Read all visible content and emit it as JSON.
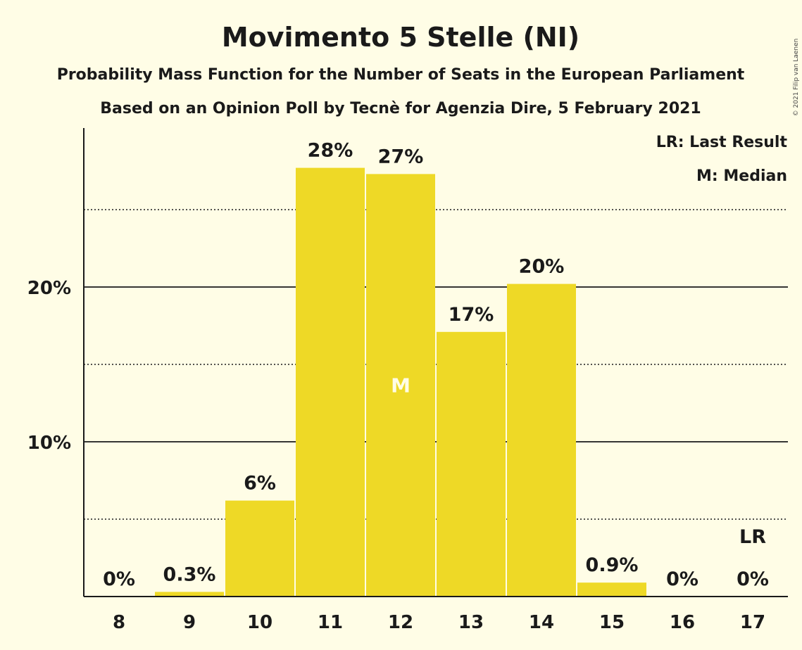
{
  "chart_data": {
    "type": "bar",
    "title": "Movimento 5 Stelle (NI)",
    "subtitle": "Probability Mass Function for the Number of Seats in the European Parliament",
    "subtitle2": "Based on an Opinion Poll by Tecnè for Agenzia Dire, 5 February 2021",
    "copyright": "© 2021 Filip van Laenen",
    "categories": [
      "8",
      "9",
      "10",
      "11",
      "12",
      "13",
      "14",
      "15",
      "16",
      "17"
    ],
    "values": [
      0,
      0.3,
      6.2,
      27.7,
      27.3,
      17.1,
      20.2,
      0.9,
      0,
      0
    ],
    "data_labels": [
      "0%",
      "0.3%",
      "6%",
      "28%",
      "27%",
      "17%",
      "20%",
      "0.9%",
      "0%",
      "0%"
    ],
    "ylim": [
      0,
      30
    ],
    "y_ticks": [
      {
        "value": 10,
        "label": "10%"
      },
      {
        "value": 20,
        "label": "20%"
      }
    ],
    "minor_gridlines": [
      5,
      15,
      25
    ],
    "median_category": "12",
    "median_marker": "M",
    "last_result_category": "17",
    "last_result_marker": "LR",
    "legend": {
      "placement": "top-right",
      "items": [
        "LR: Last Result",
        "M: Median"
      ]
    },
    "bar_color": "#eed926",
    "background": "#fffde6"
  }
}
